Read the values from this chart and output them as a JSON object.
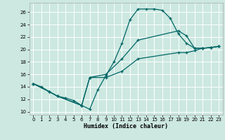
{
  "xlabel": "Humidex (Indice chaleur)",
  "bg_color": "#cce8e0",
  "line_color": "#006666",
  "grid_color": "#ffffff",
  "xlim": [
    -0.5,
    23.5
  ],
  "ylim": [
    9.5,
    27.5
  ],
  "xticks": [
    0,
    1,
    2,
    3,
    4,
    5,
    6,
    7,
    8,
    9,
    10,
    11,
    12,
    13,
    14,
    15,
    16,
    17,
    18,
    19,
    20,
    21,
    22,
    23
  ],
  "yticks": [
    10,
    12,
    14,
    16,
    18,
    20,
    22,
    24,
    26
  ],
  "curve_x": [
    0,
    1,
    2,
    3,
    4,
    5,
    6,
    7,
    8,
    9,
    10,
    11,
    12,
    13,
    14,
    15,
    16,
    17,
    18,
    19,
    20,
    21,
    22,
    23
  ],
  "curve_y": [
    14.5,
    14.0,
    13.2,
    12.5,
    12.2,
    11.8,
    11.0,
    10.4,
    13.5,
    15.8,
    18.0,
    21.0,
    24.8,
    26.5,
    26.5,
    26.5,
    26.3,
    25.0,
    22.5,
    21.0,
    20.2,
    20.2,
    20.3,
    20.5
  ],
  "diag1_x": [
    0,
    2,
    3,
    6,
    7,
    9,
    11,
    13,
    18,
    19,
    20,
    21,
    22,
    23
  ],
  "diag1_y": [
    14.5,
    13.2,
    12.5,
    11.0,
    15.5,
    16.0,
    18.5,
    21.5,
    23.0,
    22.2,
    20.2,
    20.2,
    20.3,
    20.5
  ],
  "diag2_x": [
    0,
    2,
    3,
    6,
    7,
    9,
    11,
    13,
    18,
    19,
    20,
    21,
    22,
    23
  ],
  "diag2_y": [
    14.5,
    13.2,
    12.5,
    11.0,
    15.5,
    15.5,
    16.5,
    18.5,
    19.5,
    19.5,
    19.8,
    20.2,
    20.3,
    20.5
  ]
}
